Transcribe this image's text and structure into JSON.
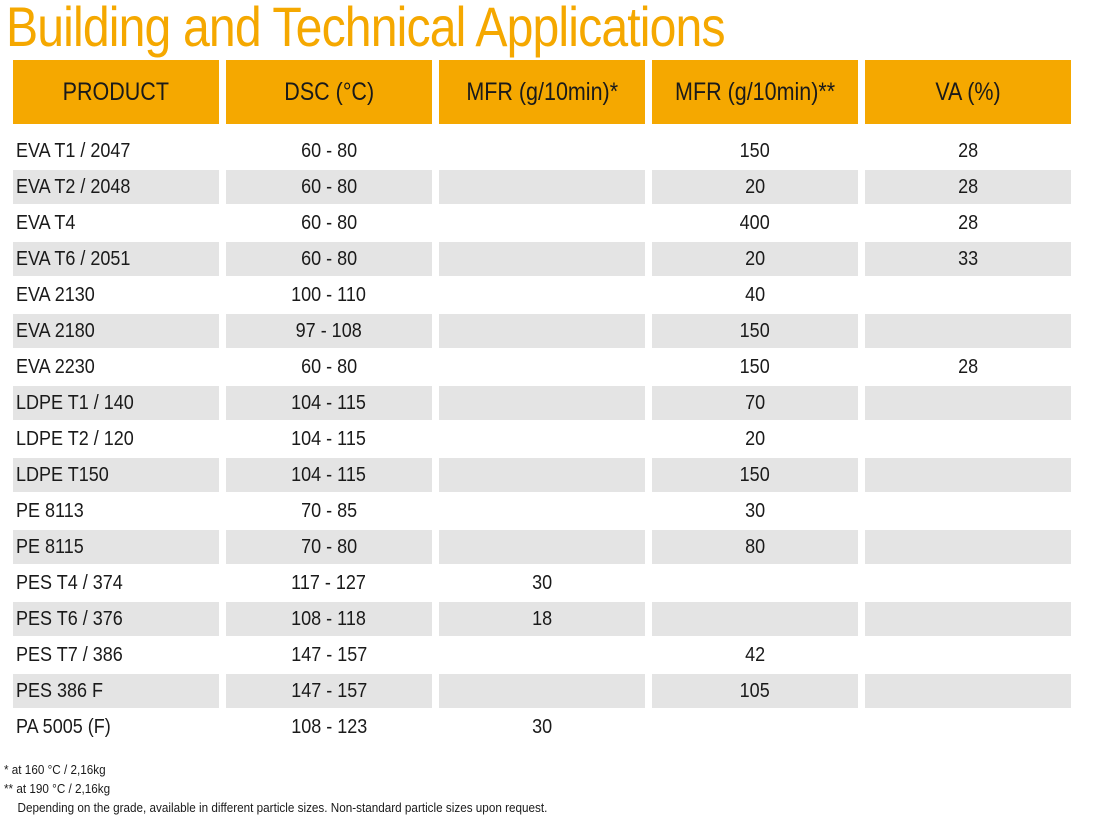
{
  "title": "Building and Technical Applications",
  "colors": {
    "accent": "#f5a800",
    "row_shade": "#e4e4e4"
  },
  "table": {
    "headers": [
      "PRODUCT",
      "DSC (°C)",
      "MFR (g/10min)*",
      "MFR (g/10min)**",
      "VA (%)"
    ],
    "rows": [
      [
        "EVA T1 / 2047",
        "60 - 80",
        "",
        "150",
        "28"
      ],
      [
        "EVA T2 / 2048",
        "60 - 80",
        "",
        "20",
        "28"
      ],
      [
        "EVA T4",
        "60 - 80",
        "",
        "400",
        "28"
      ],
      [
        "EVA T6  / 2051",
        "60 - 80",
        "",
        "20",
        "33"
      ],
      [
        "EVA 2130",
        "100 - 110",
        "",
        "40",
        ""
      ],
      [
        "EVA 2180",
        "97 - 108",
        "",
        "150",
        ""
      ],
      [
        "EVA 2230",
        "60 - 80",
        "",
        "150",
        "28"
      ],
      [
        "LDPE T1  / 140",
        "104 - 115",
        "",
        "70",
        ""
      ],
      [
        "LDPE T2 / 120",
        "104 - 115",
        "",
        "20",
        ""
      ],
      [
        "LDPE T150",
        "104 - 115",
        "",
        "150",
        ""
      ],
      [
        "PE 8113",
        "70 - 85",
        "",
        "30",
        ""
      ],
      [
        "PE 8115",
        "70 - 80",
        "",
        "80",
        ""
      ],
      [
        "PES T4 / 374",
        "117 - 127",
        "30",
        "",
        ""
      ],
      [
        "PES T6 / 376",
        "108 - 118",
        "18",
        "",
        ""
      ],
      [
        "PES T7 / 386",
        "147 - 157",
        "",
        "42",
        ""
      ],
      [
        "PES 386 F",
        "147 - 157",
        "",
        "105",
        ""
      ],
      [
        "PA 5005 (F)",
        "108 - 123",
        "30",
        "",
        ""
      ]
    ]
  },
  "footnotes": [
    "* at 160 °C / 2,16kg",
    "** at 190 °C / 2,16kg",
    "Depending on the grade, available in different particle sizes. Non-standard particle sizes upon request."
  ]
}
